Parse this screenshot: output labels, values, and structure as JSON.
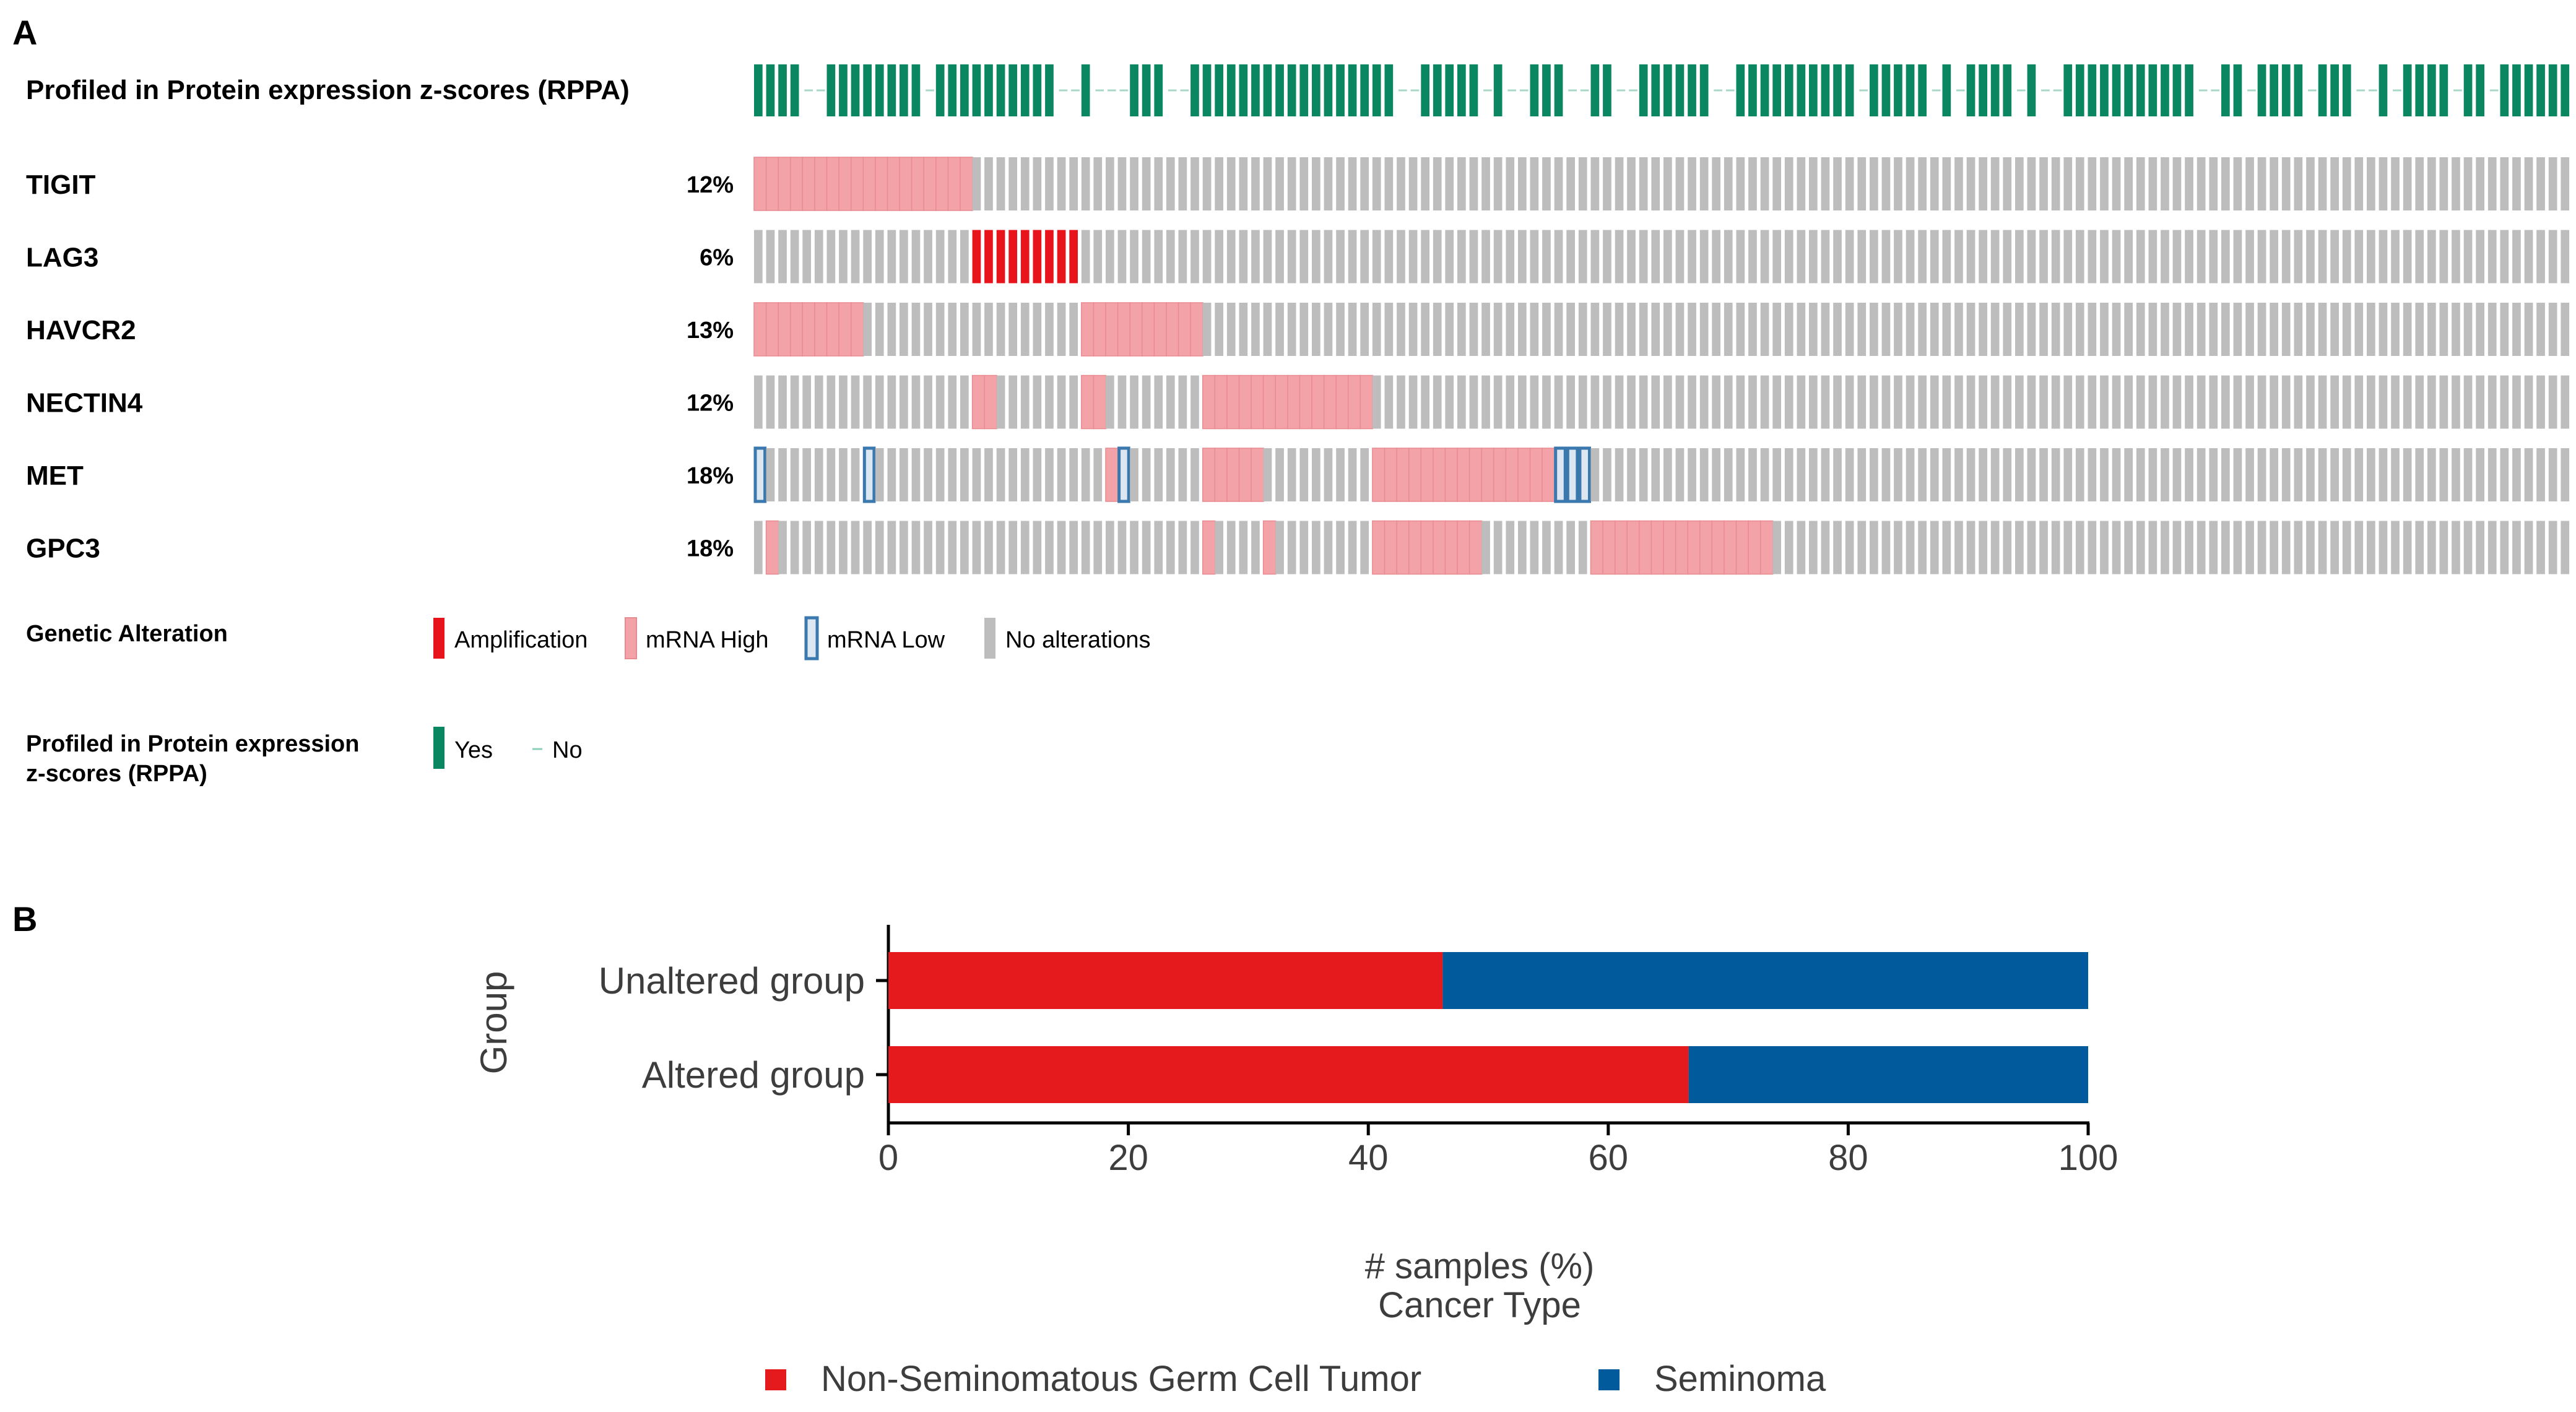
{
  "colors": {
    "profiled": "#0a8660",
    "profiled_light": "#a9d8c8",
    "amplification": "#e8141c",
    "mrna_high": "#f3a3a8",
    "mrna_high_edge": "#e98a90",
    "mrna_low_edge": "#3a78ad",
    "mrna_low_fill": "#dde7f1",
    "no_alteration": "#bdbdbd",
    "bar_nsgct": "#e41a1c",
    "bar_seminoma": "#005a9c",
    "axis": "#000000",
    "text_b": "#3d3d3d"
  },
  "panel_a": {
    "label": "A",
    "profiled_track_label": "Profiled in Protein expression z-scores (RPPA)",
    "n_samples": 150,
    "profiled_runs": [
      [
        0,
        3
      ],
      [
        6,
        13
      ],
      [
        15,
        24
      ],
      [
        27,
        27
      ],
      [
        31,
        33
      ],
      [
        36,
        52
      ],
      [
        55,
        59
      ],
      [
        61,
        61
      ],
      [
        64,
        66
      ],
      [
        69,
        70
      ],
      [
        73,
        78
      ],
      [
        81,
        90
      ],
      [
        92,
        96
      ],
      [
        98,
        98
      ],
      [
        100,
        103
      ],
      [
        105,
        105
      ],
      [
        108,
        118
      ],
      [
        121,
        122
      ],
      [
        124,
        127
      ],
      [
        129,
        131
      ],
      [
        134,
        134
      ],
      [
        136,
        139
      ],
      [
        141,
        142
      ],
      [
        144,
        149
      ]
    ],
    "genes": [
      {
        "name": "TIGIT",
        "pct": "12%",
        "alterations": [
          {
            "type": "mrna_high",
            "ranges": [
              [
                0,
                17
              ]
            ]
          }
        ]
      },
      {
        "name": "LAG3",
        "pct": "6%",
        "alterations": [
          {
            "type": "amplification",
            "ranges": [
              [
                18,
                26
              ]
            ]
          }
        ]
      },
      {
        "name": "HAVCR2",
        "pct": "13%",
        "alterations": [
          {
            "type": "mrna_high",
            "ranges": [
              [
                0,
                8
              ],
              [
                27,
                36
              ]
            ]
          }
        ]
      },
      {
        "name": "NECTIN4",
        "pct": "12%",
        "alterations": [
          {
            "type": "mrna_high",
            "ranges": [
              [
                18,
                19
              ],
              [
                27,
                28
              ],
              [
                37,
                50
              ]
            ]
          }
        ]
      },
      {
        "name": "MET",
        "pct": "18%",
        "alterations": [
          {
            "type": "mrna_low",
            "ranges": [
              [
                0,
                0
              ],
              [
                9,
                9
              ],
              [
                30,
                30
              ],
              [
                66,
                68
              ]
            ]
          },
          {
            "type": "mrna_high",
            "ranges": [
              [
                29,
                29
              ],
              [
                37,
                41
              ],
              [
                51,
                65
              ]
            ]
          }
        ]
      },
      {
        "name": "GPC3",
        "pct": "18%",
        "alterations": [
          {
            "type": "mrna_high",
            "ranges": [
              [
                1,
                1
              ],
              [
                37,
                37
              ],
              [
                42,
                42
              ],
              [
                51,
                59
              ],
              [
                69,
                83
              ]
            ]
          }
        ]
      }
    ],
    "legend_genetic": {
      "title": "Genetic Alteration",
      "items": [
        {
          "key": "amplification",
          "label": "Amplification"
        },
        {
          "key": "mrna_high",
          "label": "mRNA High"
        },
        {
          "key": "mrna_low",
          "label": "mRNA Low"
        },
        {
          "key": "no_alteration",
          "label": "No alterations"
        }
      ]
    },
    "legend_profiled": {
      "title_line1": "Profiled in Protein expression",
      "title_line2": "z-scores (RPPA)",
      "yes_label": "Yes",
      "no_label": "No"
    }
  },
  "panel_b": {
    "label": "B"
  },
  "chart_data": {
    "type": "bar",
    "orientation": "horizontal",
    "stacked": true,
    "categories": [
      "Unaltered group",
      "Altered group"
    ],
    "series": [
      {
        "name": "Non-Seminomatous Germ Cell Tumor",
        "color_key": "bar_nsgct",
        "values": [
          46.2,
          66.7
        ]
      },
      {
        "name": "Seminoma",
        "color_key": "bar_seminoma",
        "values": [
          53.8,
          33.3
        ]
      }
    ],
    "xlabel": "# samples (%)",
    "ylabel": "Group",
    "xlim": [
      0,
      100
    ],
    "xticks": [
      0,
      20,
      40,
      60,
      80,
      100
    ],
    "legend_title": "Cancer Type",
    "legend_position": "bottom",
    "grid": false
  }
}
